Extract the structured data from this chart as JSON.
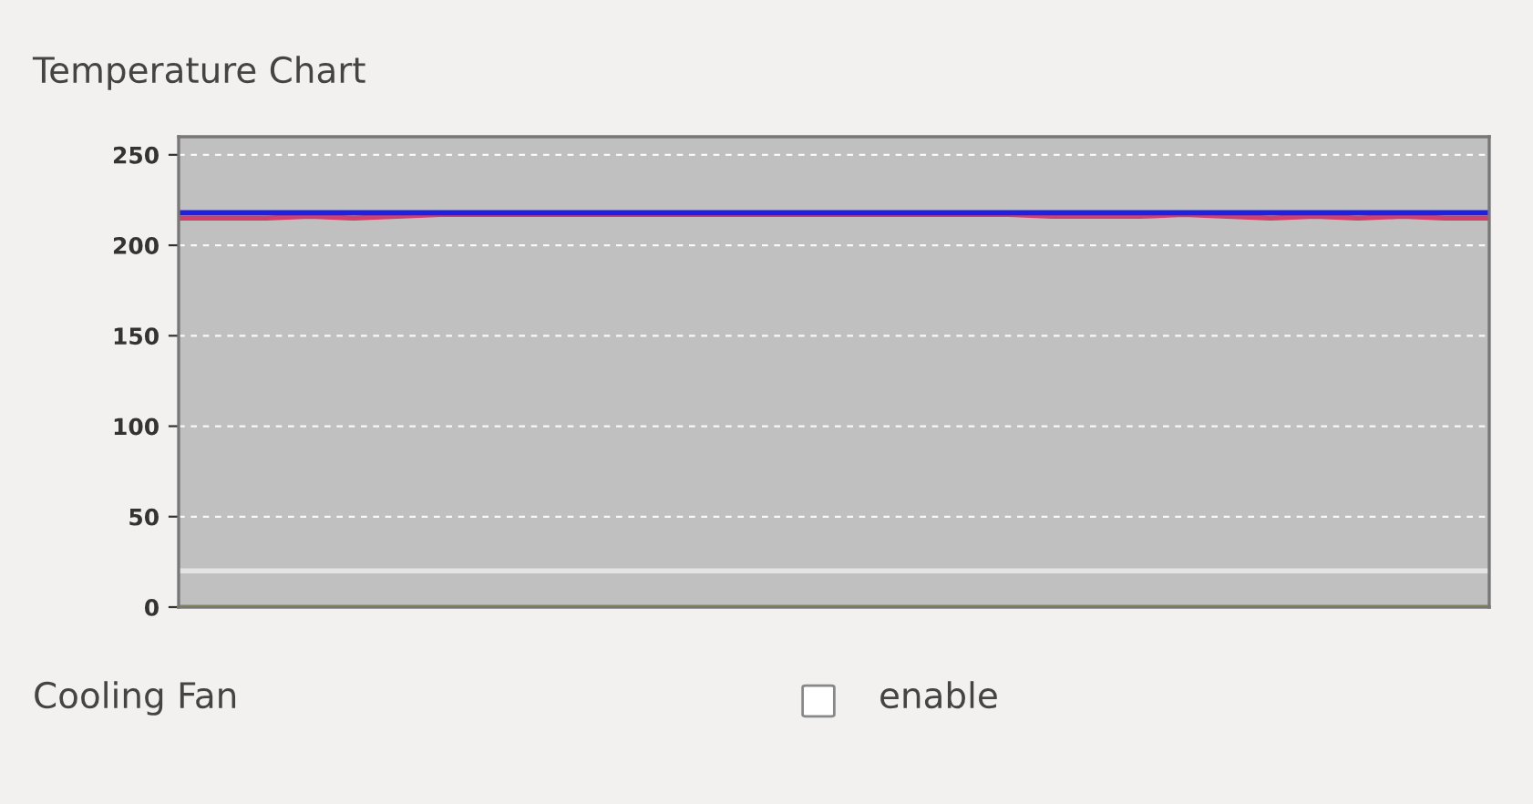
{
  "chart_data": {
    "type": "line",
    "title": "Temperature Chart",
    "categories": [
      null,
      null,
      null,
      null,
      null,
      null,
      null,
      null,
      null,
      null,
      null,
      null,
      null,
      null,
      null,
      null,
      null,
      null,
      null,
      null,
      null,
      null,
      null,
      null,
      null,
      null,
      null,
      null,
      null,
      null,
      null
    ],
    "series": [
      {
        "color": "#d0406a",
        "values": [
          215,
          215,
          215,
          216,
          215,
          216,
          217,
          217,
          217,
          217,
          217,
          217,
          217,
          217,
          217,
          217,
          217,
          217,
          217,
          217,
          216,
          216,
          216,
          217,
          216,
          215,
          216,
          215,
          216,
          215,
          215
        ]
      },
      {
        "color": "#2020e0",
        "values": [
          218,
          218,
          218,
          218,
          218,
          218,
          218,
          218,
          218,
          218,
          218,
          218,
          218,
          218,
          218,
          218,
          218,
          218,
          218,
          218,
          218,
          218,
          218,
          218,
          218,
          218,
          218,
          218,
          218,
          218,
          218
        ]
      },
      {
        "color": "#e4e4e4",
        "values": [
          20,
          20,
          20,
          20,
          20,
          20,
          20,
          20,
          20,
          20,
          20,
          20,
          20,
          20,
          20,
          20,
          20,
          20,
          20,
          20,
          20,
          20,
          20,
          20,
          20,
          20,
          20,
          20,
          20,
          20,
          20
        ]
      },
      {
        "color": "#a8a820",
        "values": [
          0,
          0,
          0,
          0,
          0,
          0,
          0,
          0,
          0,
          0,
          0,
          0,
          0,
          0,
          0,
          0,
          0,
          0,
          0,
          0,
          0,
          0,
          0,
          0,
          0,
          0,
          0,
          0,
          0,
          0,
          0
        ]
      }
    ],
    "ylim": [
      0,
      260
    ],
    "yticks": [
      0,
      50,
      100,
      150,
      200,
      250
    ],
    "grid": "y",
    "line_style": "solid",
    "annotations": [
      "Cooling Fan",
      "enable"
    ]
  }
}
